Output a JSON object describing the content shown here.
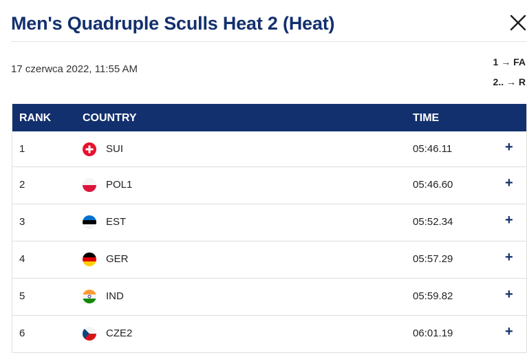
{
  "header": {
    "title": "Men's Quadruple Sculls Heat 2 (Heat)"
  },
  "info": {
    "date": "17 czerwca 2022, 11:55 AM",
    "qualification": [
      "1 → FA",
      "2.. → R"
    ]
  },
  "table": {
    "columns": {
      "rank": "RANK",
      "country": "COUNTRY",
      "time": "TIME"
    },
    "rows": [
      {
        "rank": "1",
        "country": "SUI",
        "time": "05:46.11",
        "flag": "switzerland-flag"
      },
      {
        "rank": "2",
        "country": "POL1",
        "time": "05:46.60",
        "flag": "poland-flag"
      },
      {
        "rank": "3",
        "country": "EST",
        "time": "05:52.34",
        "flag": "estonia-flag"
      },
      {
        "rank": "4",
        "country": "GER",
        "time": "05:57.29",
        "flag": "germany-flag"
      },
      {
        "rank": "5",
        "country": "IND",
        "time": "05:59.82",
        "flag": "india-flag"
      },
      {
        "rank": "6",
        "country": "CZE2",
        "time": "06:01.19",
        "flag": "czech-flag"
      }
    ],
    "expand_symbol": "+"
  },
  "colors": {
    "brand": "#13306e"
  }
}
